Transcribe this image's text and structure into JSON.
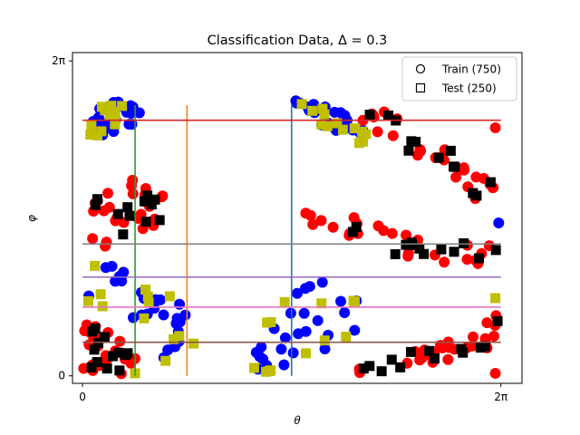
{
  "chart_data": {
    "type": "scatter",
    "title": "Classification Data, Δ = 0.3",
    "xlabel": "θ",
    "ylabel": "φ",
    "xlim": [
      -0.15,
      6.6
    ],
    "ylim": [
      -0.15,
      6.45
    ],
    "x_ticks": [
      {
        "value": 0,
        "label": "0"
      },
      {
        "value": 6.2832,
        "label": "2π"
      }
    ],
    "y_ticks": [
      {
        "value": 0,
        "label": "0"
      },
      {
        "value": 6.2832,
        "label": "2π"
      }
    ],
    "legend_position": "top-right",
    "legend": [
      {
        "label": "Train (750)",
        "marker": "circle"
      },
      {
        "label": "Test (250)",
        "marker": "square"
      }
    ],
    "class_colors": {
      "train_class_0": "#ff0000",
      "train_class_1": "#0000ff",
      "test_class_0": "#000000",
      "test_class_1": "#bfbf00"
    },
    "vertical_lines": [
      {
        "x": 0.79,
        "y_from": 0,
        "y_to": 5.4,
        "color": "#2ca02c"
      },
      {
        "x": 1.57,
        "y_from": 0,
        "y_to": 5.4,
        "color": "#ff7f0e"
      },
      {
        "x": 3.14,
        "y_from": 0,
        "y_to": 5.4,
        "color": "#1f77b4"
      }
    ],
    "horizontal_lines": [
      {
        "y": 5.1,
        "x_from": 0,
        "x_to": 6.2832,
        "color": "#d62728"
      },
      {
        "y": 2.63,
        "x_from": 0,
        "x_to": 6.2832,
        "color": "#7f7f7f"
      },
      {
        "y": 1.97,
        "x_from": 0,
        "x_to": 6.2832,
        "color": "#9467bd"
      },
      {
        "y": 1.37,
        "x_from": 0,
        "x_to": 6.2832,
        "color": "#e377c2"
      },
      {
        "y": 0.67,
        "x_from": 0,
        "x_to": 6.2832,
        "color": "#8c564b"
      }
    ],
    "class_regions": [
      {
        "class": 1,
        "polygon": [
          [
            0.05,
            5.0
          ],
          [
            0.35,
            5.5
          ],
          [
            0.75,
            5.45
          ],
          [
            1.05,
            5.3
          ],
          [
            0.8,
            5.05
          ],
          [
            0.3,
            4.75
          ],
          [
            0.05,
            4.7
          ]
        ]
      },
      {
        "class": 1,
        "polygon": [
          [
            3.1,
            5.55
          ],
          [
            3.55,
            5.45
          ],
          [
            4.1,
            5.15
          ],
          [
            4.3,
            4.75
          ],
          [
            4.25,
            4.6
          ],
          [
            3.95,
            4.75
          ],
          [
            3.45,
            5.1
          ],
          [
            3.15,
            5.35
          ]
        ]
      },
      {
        "class": 1,
        "polygon": [
          [
            0.05,
            2.4
          ],
          [
            0.4,
            2.25
          ],
          [
            0.9,
            2.05
          ],
          [
            1.4,
            1.6
          ],
          [
            1.8,
            1.05
          ],
          [
            1.7,
            0.35
          ],
          [
            1.5,
            0.05
          ],
          [
            1.2,
            0.15
          ],
          [
            1.1,
            0.6
          ],
          [
            0.95,
            0.95
          ],
          [
            0.6,
            1.25
          ],
          [
            0.3,
            1.35
          ],
          [
            0.05,
            1.35
          ]
        ]
      },
      {
        "class": 1,
        "polygon": [
          [
            2.5,
            0.15
          ],
          [
            2.65,
            0.8
          ],
          [
            2.85,
            1.3
          ],
          [
            3.05,
            1.6
          ],
          [
            3.35,
            1.9
          ],
          [
            3.85,
            1.85
          ],
          [
            4.25,
            1.45
          ],
          [
            4.15,
            0.95
          ],
          [
            3.7,
            0.55
          ],
          [
            3.4,
            0.25
          ],
          [
            3.1,
            0.05
          ],
          [
            2.75,
            0.05
          ]
        ]
      },
      {
        "class": 0,
        "polygon": [
          [
            4.3,
            5.55
          ],
          [
            4.7,
            5.2
          ],
          [
            5.2,
            4.85
          ],
          [
            5.6,
            4.45
          ],
          [
            6.1,
            3.9
          ],
          [
            6.25,
            3.8
          ],
          [
            6.25,
            3.55
          ],
          [
            5.9,
            3.5
          ],
          [
            5.45,
            4.05
          ],
          [
            5.0,
            4.4
          ],
          [
            4.55,
            4.75
          ],
          [
            4.2,
            5.05
          ],
          [
            4.05,
            5.25
          ]
        ]
      },
      {
        "class": 0,
        "polygon": [
          [
            0.05,
            3.8
          ],
          [
            0.35,
            3.95
          ],
          [
            0.8,
            3.9
          ],
          [
            1.2,
            3.7
          ],
          [
            1.35,
            3.35
          ],
          [
            1.1,
            3.0
          ],
          [
            0.7,
            2.7
          ],
          [
            0.3,
            2.55
          ],
          [
            0.05,
            2.6
          ]
        ]
      },
      {
        "class": 0,
        "polygon": [
          [
            3.25,
            3.3
          ],
          [
            3.7,
            3.35
          ],
          [
            4.3,
            3.05
          ],
          [
            4.9,
            2.85
          ],
          [
            5.5,
            2.7
          ],
          [
            6.0,
            2.65
          ],
          [
            6.25,
            2.55
          ],
          [
            6.2,
            2.1
          ],
          [
            5.8,
            2.15
          ],
          [
            5.2,
            2.3
          ],
          [
            4.6,
            2.45
          ],
          [
            4.0,
            2.65
          ],
          [
            3.45,
            2.85
          ],
          [
            3.25,
            3.05
          ]
        ]
      },
      {
        "class": 0,
        "polygon": [
          [
            0.0,
            1.15
          ],
          [
            0.3,
            0.95
          ],
          [
            0.7,
            0.6
          ],
          [
            0.85,
            0.2
          ],
          [
            0.7,
            0.02
          ],
          [
            0.3,
            0.05
          ],
          [
            0.0,
            0.1
          ]
        ]
      },
      {
        "class": 0,
        "polygon": [
          [
            3.9,
            0.05
          ],
          [
            4.6,
            0.35
          ],
          [
            5.3,
            0.65
          ],
          [
            5.9,
            0.95
          ],
          [
            6.25,
            1.25
          ],
          [
            6.28,
            0.7
          ],
          [
            6.0,
            0.5
          ],
          [
            5.4,
            0.25
          ],
          [
            4.8,
            0.05
          ],
          [
            4.2,
            0.02
          ]
        ]
      }
    ],
    "points_per_region": {
      "train": 26,
      "test": 13
    },
    "edge_points": [
      {
        "x": 6.2,
        "y": 4.95,
        "class": 0,
        "set": "train"
      },
      {
        "x": 6.25,
        "y": 3.05,
        "class": 1,
        "set": "train"
      },
      {
        "x": 6.2,
        "y": 1.55,
        "class": 1,
        "set": "test"
      },
      {
        "x": 6.2,
        "y": 0.05,
        "class": 0,
        "set": "train"
      },
      {
        "x": 0.79,
        "y": 0.05,
        "class": 1,
        "set": "test"
      }
    ]
  }
}
